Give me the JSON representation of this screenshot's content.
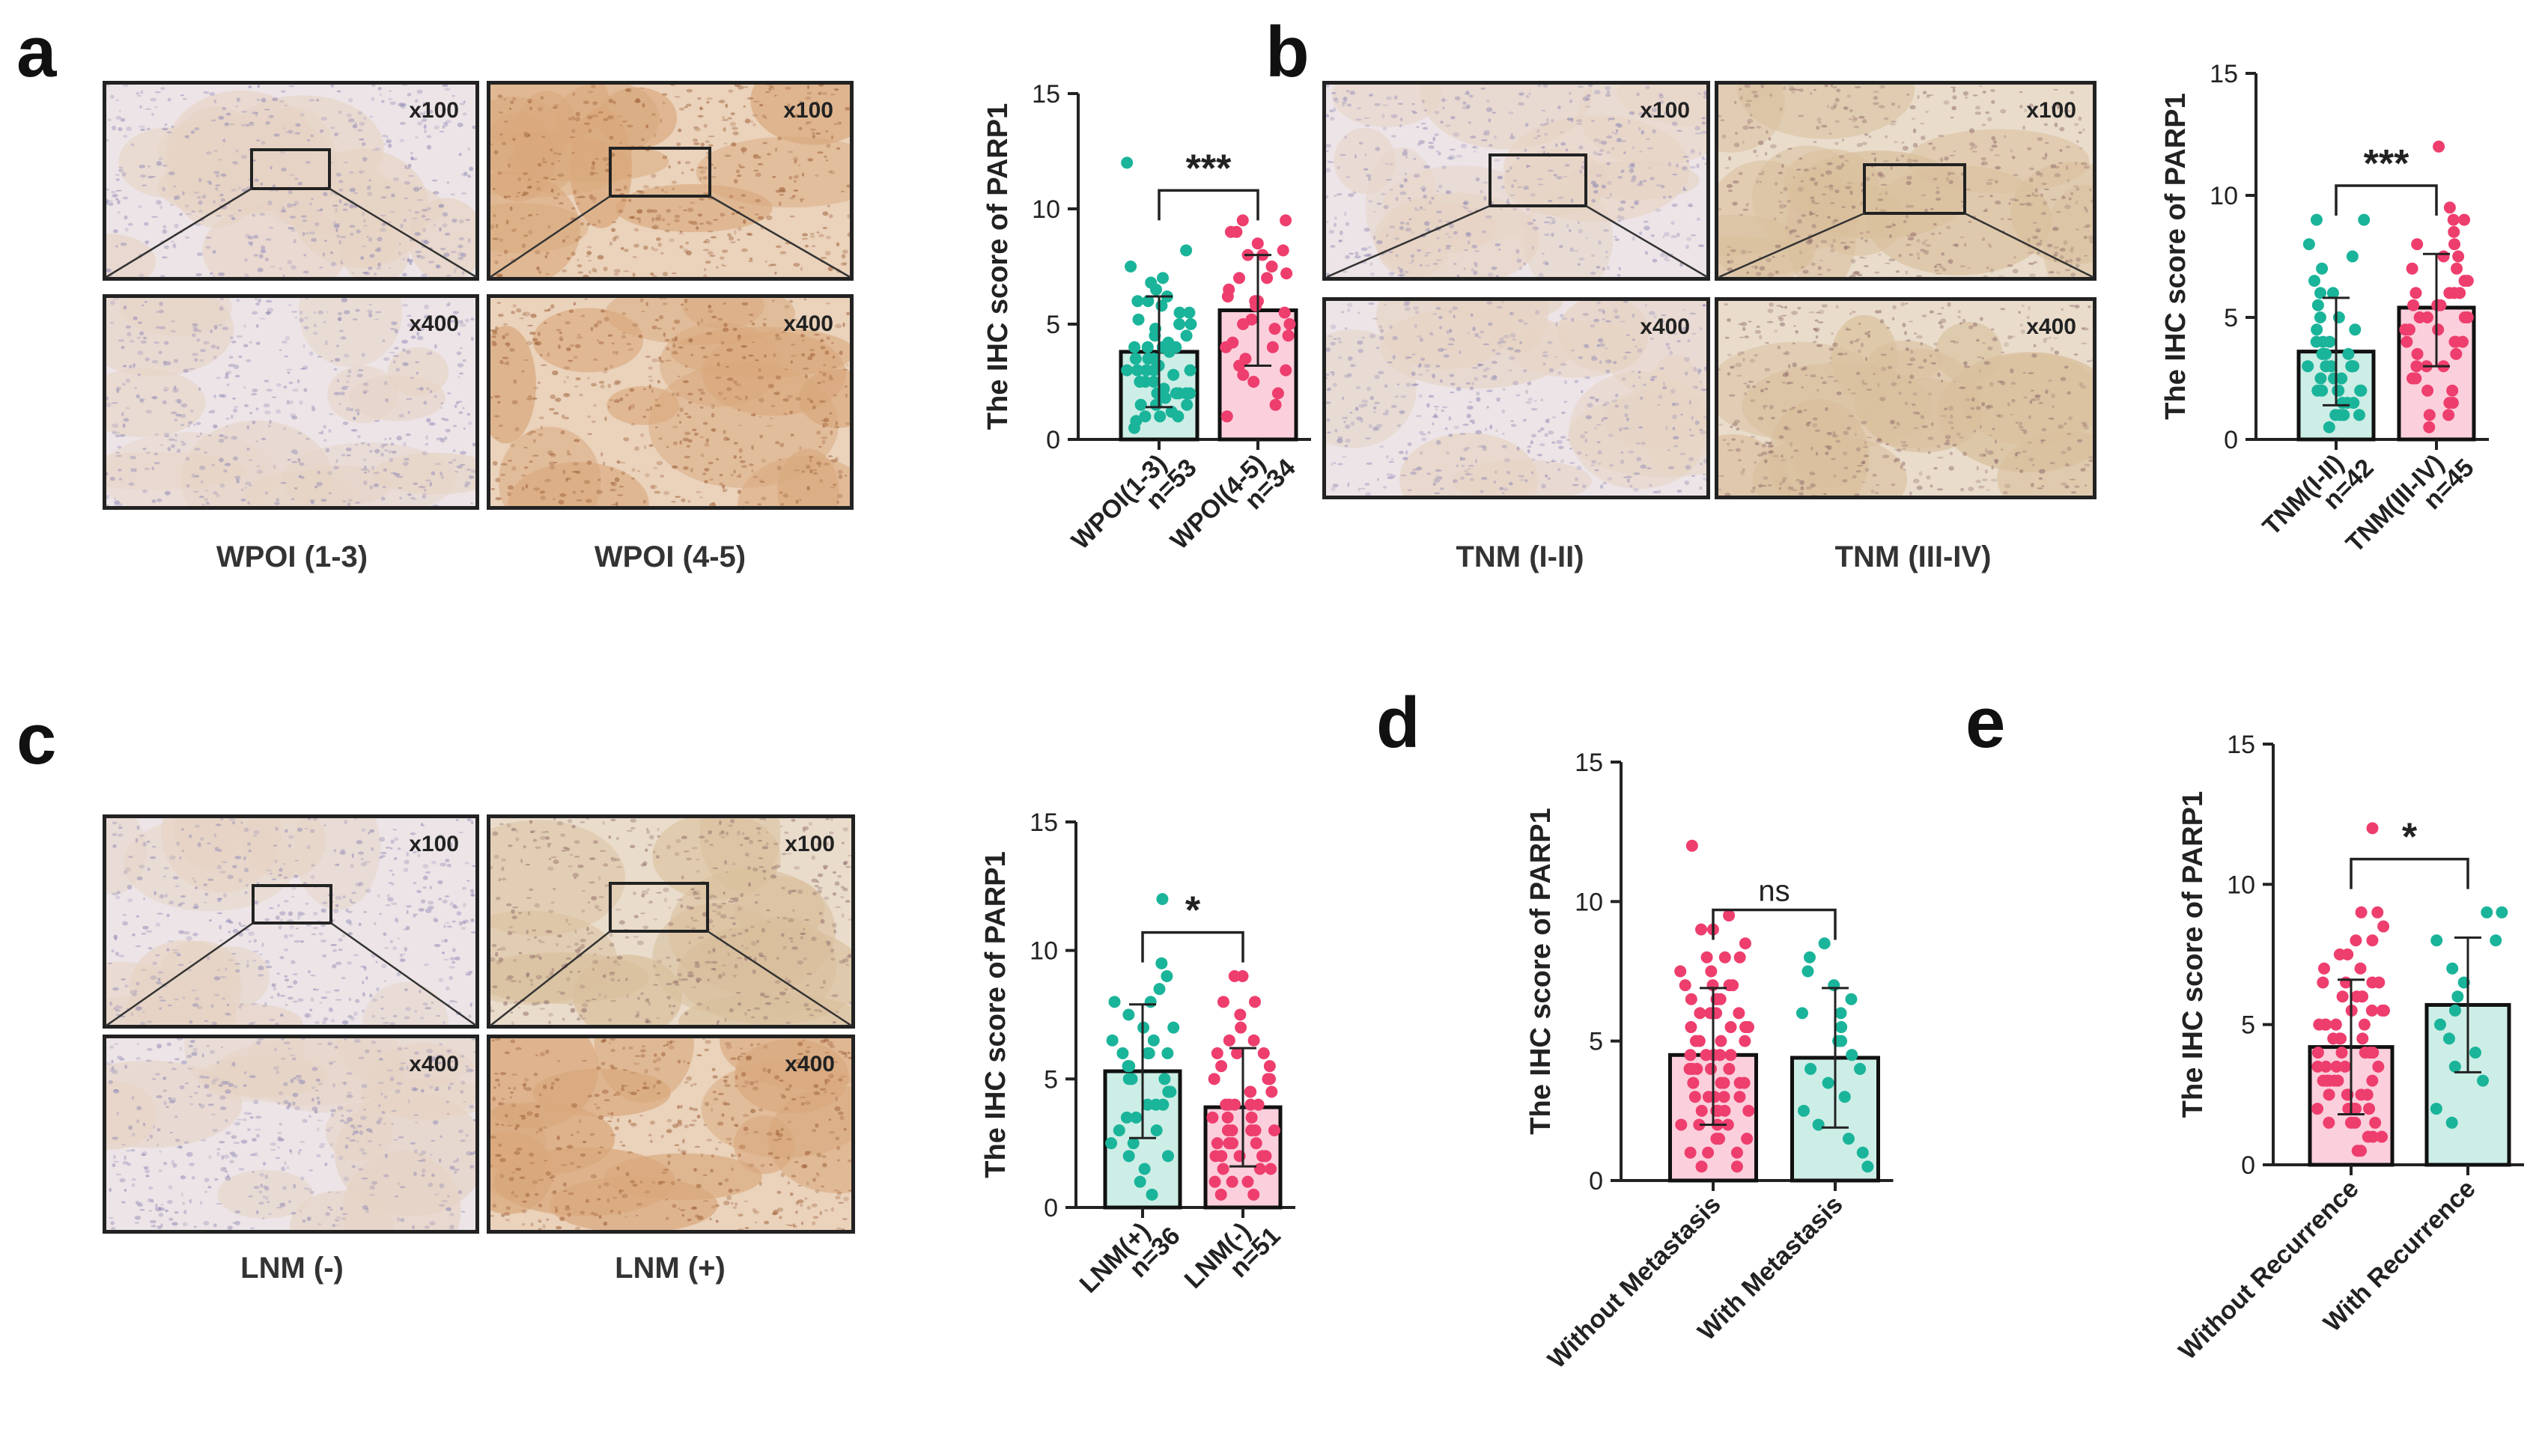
{
  "figure": {
    "panels": [
      {
        "letter": "a",
        "micrographs": [
          {
            "mag": "x100",
            "tone": "pale",
            "caption_group": 0
          },
          {
            "mag": "x100",
            "tone": "brown",
            "caption_group": 1
          },
          {
            "mag": "x400",
            "tone": "pale",
            "caption_group": 0
          },
          {
            "mag": "x400",
            "tone": "brown",
            "caption_group": 1
          }
        ],
        "captions": [
          "WPOI (1-3)",
          "WPOI (4-5)"
        ]
      },
      {
        "letter": "b",
        "micrographs": [
          {
            "mag": "x100",
            "tone": "pale"
          },
          {
            "mag": "x100",
            "tone": "tan"
          },
          {
            "mag": "x400",
            "tone": "pale"
          },
          {
            "mag": "x400",
            "tone": "tan"
          }
        ],
        "captions": [
          "TNM (I-II)",
          "TNM (III-IV)"
        ]
      },
      {
        "letter": "c",
        "micrographs": [
          {
            "mag": "x100",
            "tone": "pale"
          },
          {
            "mag": "x100",
            "tone": "tan"
          },
          {
            "mag": "x400",
            "tone": "pale"
          },
          {
            "mag": "x400",
            "tone": "brown"
          }
        ],
        "captions": [
          "LNM (-)",
          "LNM (+)"
        ]
      },
      {
        "letter": "d"
      },
      {
        "letter": "e"
      }
    ]
  },
  "colors": {
    "teal": "#1ab49a",
    "pink": "#ee3e6e",
    "teal_fill": "#cdeee6",
    "pink_fill": "#fbd0dc"
  },
  "chart_data": [
    {
      "id": "a",
      "type": "bar",
      "ylabel": "The IHC score of PARP1",
      "ylim": [
        0,
        15
      ],
      "yticks": [
        0,
        5,
        10,
        15
      ],
      "significance": "***",
      "groups": [
        {
          "label": "WPOI(1-3)",
          "n": "n=53",
          "mean": 3.8,
          "sd_low": 1.4,
          "sd_high": 6.2,
          "color": "teal",
          "points": [
            12,
            8.2,
            7.5,
            7.0,
            6.8,
            6.5,
            6.2,
            6.0,
            6.0,
            5.8,
            5.5,
            5.5,
            5.2,
            5.0,
            5.0,
            4.8,
            4.5,
            4.5,
            4.2,
            4.0,
            4.0,
            4.0,
            3.8,
            3.5,
            3.5,
            3.5,
            3.2,
            3.0,
            3.0,
            3.0,
            3.0,
            2.8,
            2.5,
            2.5,
            2.5,
            2.2,
            2.0,
            2.0,
            2.0,
            2.0,
            1.8,
            1.5,
            1.5,
            1.5,
            1.2,
            1.0,
            1.0,
            1.0,
            0.8,
            0.5,
            3.0,
            4.0,
            2.0
          ]
        },
        {
          "label": "WPOI(4-5)",
          "n": "n=34",
          "mean": 5.6,
          "sd_low": 3.2,
          "sd_high": 8.0,
          "color": "pink",
          "points": [
            9.5,
            9.5,
            9.0,
            9.0,
            8.5,
            8.2,
            8.0,
            8.0,
            7.5,
            7.2,
            7.0,
            7.0,
            6.5,
            6.2,
            6.0,
            6.0,
            5.8,
            5.5,
            5.2,
            5.0,
            5.0,
            4.8,
            4.5,
            4.2,
            4.0,
            4.0,
            3.5,
            3.2,
            3.0,
            2.8,
            2.5,
            2.0,
            1.5,
            1.0
          ]
        }
      ]
    },
    {
      "id": "b",
      "type": "bar",
      "ylabel": "The IHC score of PARP1",
      "ylim": [
        0,
        15
      ],
      "yticks": [
        0,
        5,
        10,
        15
      ],
      "significance": "***",
      "groups": [
        {
          "label": "TNM(I-II)",
          "n": "n=42",
          "mean": 3.6,
          "sd_low": 1.4,
          "sd_high": 5.8,
          "color": "teal",
          "points": [
            9.0,
            9.0,
            8.0,
            7.5,
            7.0,
            6.5,
            6.0,
            6.0,
            5.5,
            5.0,
            5.0,
            4.5,
            4.5,
            4.0,
            4.0,
            4.0,
            3.5,
            3.5,
            3.5,
            3.0,
            3.0,
            3.0,
            3.0,
            3.0,
            2.5,
            2.5,
            2.5,
            2.0,
            2.0,
            2.0,
            2.0,
            2.0,
            1.5,
            1.5,
            1.5,
            1.0,
            1.0,
            1.0,
            1.0,
            0.5,
            3.0,
            2.0
          ]
        },
        {
          "label": "TNM(III-IV)",
          "n": "n=45",
          "mean": 5.4,
          "sd_low": 3.0,
          "sd_high": 7.6,
          "color": "pink",
          "points": [
            12,
            9.5,
            9.0,
            9.0,
            8.5,
            8.0,
            8.0,
            7.5,
            7.5,
            7.0,
            7.0,
            6.5,
            6.5,
            6.0,
            6.0,
            6.0,
            5.5,
            5.5,
            5.5,
            5.0,
            5.0,
            5.0,
            4.5,
            4.5,
            4.5,
            4.0,
            4.0,
            4.0,
            3.5,
            3.5,
            3.0,
            3.0,
            3.0,
            2.5,
            2.5,
            2.0,
            2.0,
            1.5,
            1.5,
            1.0,
            1.0,
            0.5,
            6.0,
            5.0,
            4.0
          ]
        }
      ]
    },
    {
      "id": "c",
      "type": "bar",
      "ylabel": "The IHC score of PARP1",
      "ylim": [
        0,
        15
      ],
      "yticks": [
        0,
        5,
        10,
        15
      ],
      "significance": "*",
      "groups": [
        {
          "label": "LNM(+)",
          "n": "n=36",
          "mean": 5.3,
          "sd_low": 2.7,
          "sd_high": 7.9,
          "color": "teal",
          "points": [
            12,
            9.5,
            9.0,
            8.5,
            8.0,
            8.0,
            7.5,
            7.0,
            7.0,
            6.5,
            6.5,
            6.0,
            6.0,
            6.0,
            5.5,
            5.5,
            5.0,
            5.0,
            5.0,
            4.5,
            4.5,
            4.0,
            4.0,
            4.0,
            3.5,
            3.5,
            3.0,
            3.0,
            2.5,
            2.5,
            2.0,
            2.0,
            1.5,
            1.0,
            0.5,
            6.0
          ]
        },
        {
          "label": "LNM(-)",
          "n": "n=51",
          "mean": 3.9,
          "sd_low": 1.6,
          "sd_high": 6.2,
          "color": "pink",
          "points": [
            9.0,
            9.0,
            8.0,
            8.0,
            7.5,
            7.0,
            6.5,
            6.5,
            6.0,
            6.0,
            6.0,
            5.5,
            5.5,
            5.0,
            5.0,
            5.0,
            4.5,
            4.5,
            4.5,
            4.0,
            4.0,
            4.0,
            4.0,
            3.5,
            3.5,
            3.5,
            3.0,
            3.0,
            3.0,
            3.0,
            3.0,
            2.5,
            2.5,
            2.5,
            2.5,
            2.0,
            2.0,
            2.0,
            2.0,
            2.0,
            1.5,
            1.5,
            1.5,
            1.0,
            1.0,
            1.0,
            0.5,
            0.5,
            3.0,
            4.0,
            2.5
          ]
        }
      ]
    },
    {
      "id": "d",
      "type": "bar",
      "ylabel": "The IHC score of PARP1",
      "ylim": [
        0,
        15
      ],
      "yticks": [
        0,
        5,
        10,
        15
      ],
      "significance": "ns",
      "groups": [
        {
          "label": "Without Metastasis",
          "n": "",
          "mean": 4.5,
          "sd_low": 2.0,
          "sd_high": 6.9,
          "color": "pink",
          "points": [
            12,
            9.5,
            9.0,
            9.0,
            8.5,
            8.0,
            8.0,
            7.5,
            7.5,
            7.0,
            7.0,
            7.0,
            6.5,
            6.5,
            6.5,
            6.0,
            6.0,
            6.0,
            6.0,
            5.5,
            5.5,
            5.5,
            5.0,
            5.0,
            5.0,
            5.0,
            4.5,
            4.5,
            4.5,
            4.5,
            4.0,
            4.0,
            4.0,
            4.0,
            4.0,
            3.5,
            3.5,
            3.5,
            3.5,
            3.0,
            3.0,
            3.0,
            3.0,
            3.0,
            2.5,
            2.5,
            2.5,
            2.5,
            2.0,
            2.0,
            2.0,
            2.0,
            1.5,
            1.5,
            1.5,
            1.0,
            1.0,
            1.0,
            0.5,
            0.5,
            5.5,
            4.5,
            3.5,
            2.5,
            6.5,
            7.0,
            8.0
          ]
        },
        {
          "label": "With Metastasis",
          "n": "",
          "mean": 4.4,
          "sd_low": 1.9,
          "sd_high": 6.9,
          "color": "teal",
          "points": [
            8.5,
            8.0,
            7.5,
            7.0,
            6.5,
            6.0,
            6.0,
            5.5,
            5.0,
            5.0,
            4.5,
            4.0,
            4.0,
            3.5,
            3.0,
            2.5,
            2.0,
            1.5,
            1.0,
            0.5
          ]
        }
      ]
    },
    {
      "id": "e",
      "type": "bar",
      "ylabel": "The IHC score of PARP1",
      "ylim": [
        0,
        15
      ],
      "yticks": [
        0,
        5,
        10,
        15
      ],
      "significance": "*",
      "groups": [
        {
          "label": "Without Recurrence",
          "n": "",
          "mean": 4.2,
          "sd_low": 1.8,
          "sd_high": 6.6,
          "color": "pink",
          "points": [
            12,
            9.0,
            9.0,
            8.5,
            8.0,
            8.0,
            7.5,
            7.0,
            7.0,
            6.5,
            6.5,
            6.5,
            6.0,
            6.0,
            6.0,
            5.5,
            5.5,
            5.5,
            5.0,
            5.0,
            5.0,
            5.0,
            4.5,
            4.5,
            4.5,
            4.0,
            4.0,
            4.0,
            4.0,
            3.5,
            3.5,
            3.5,
            3.5,
            3.0,
            3.0,
            3.0,
            3.0,
            3.0,
            2.5,
            2.5,
            2.5,
            2.5,
            2.0,
            2.0,
            2.0,
            2.0,
            1.5,
            1.5,
            1.5,
            1.0,
            1.0,
            1.0,
            0.5,
            0.5,
            4.5,
            3.5,
            2.5,
            6.0,
            5.0,
            3.0,
            2.0,
            4.0,
            1.5,
            7.5,
            5.5,
            6.5
          ]
        },
        {
          "label": "With Recurrence",
          "n": "",
          "mean": 5.7,
          "sd_low": 3.3,
          "sd_high": 8.1,
          "color": "teal",
          "points": [
            9.0,
            9.0,
            8.0,
            8.0,
            7.0,
            6.5,
            6.0,
            5.5,
            5.0,
            4.5,
            4.0,
            3.5,
            3.0,
            2.0,
            1.5
          ]
        }
      ]
    }
  ]
}
